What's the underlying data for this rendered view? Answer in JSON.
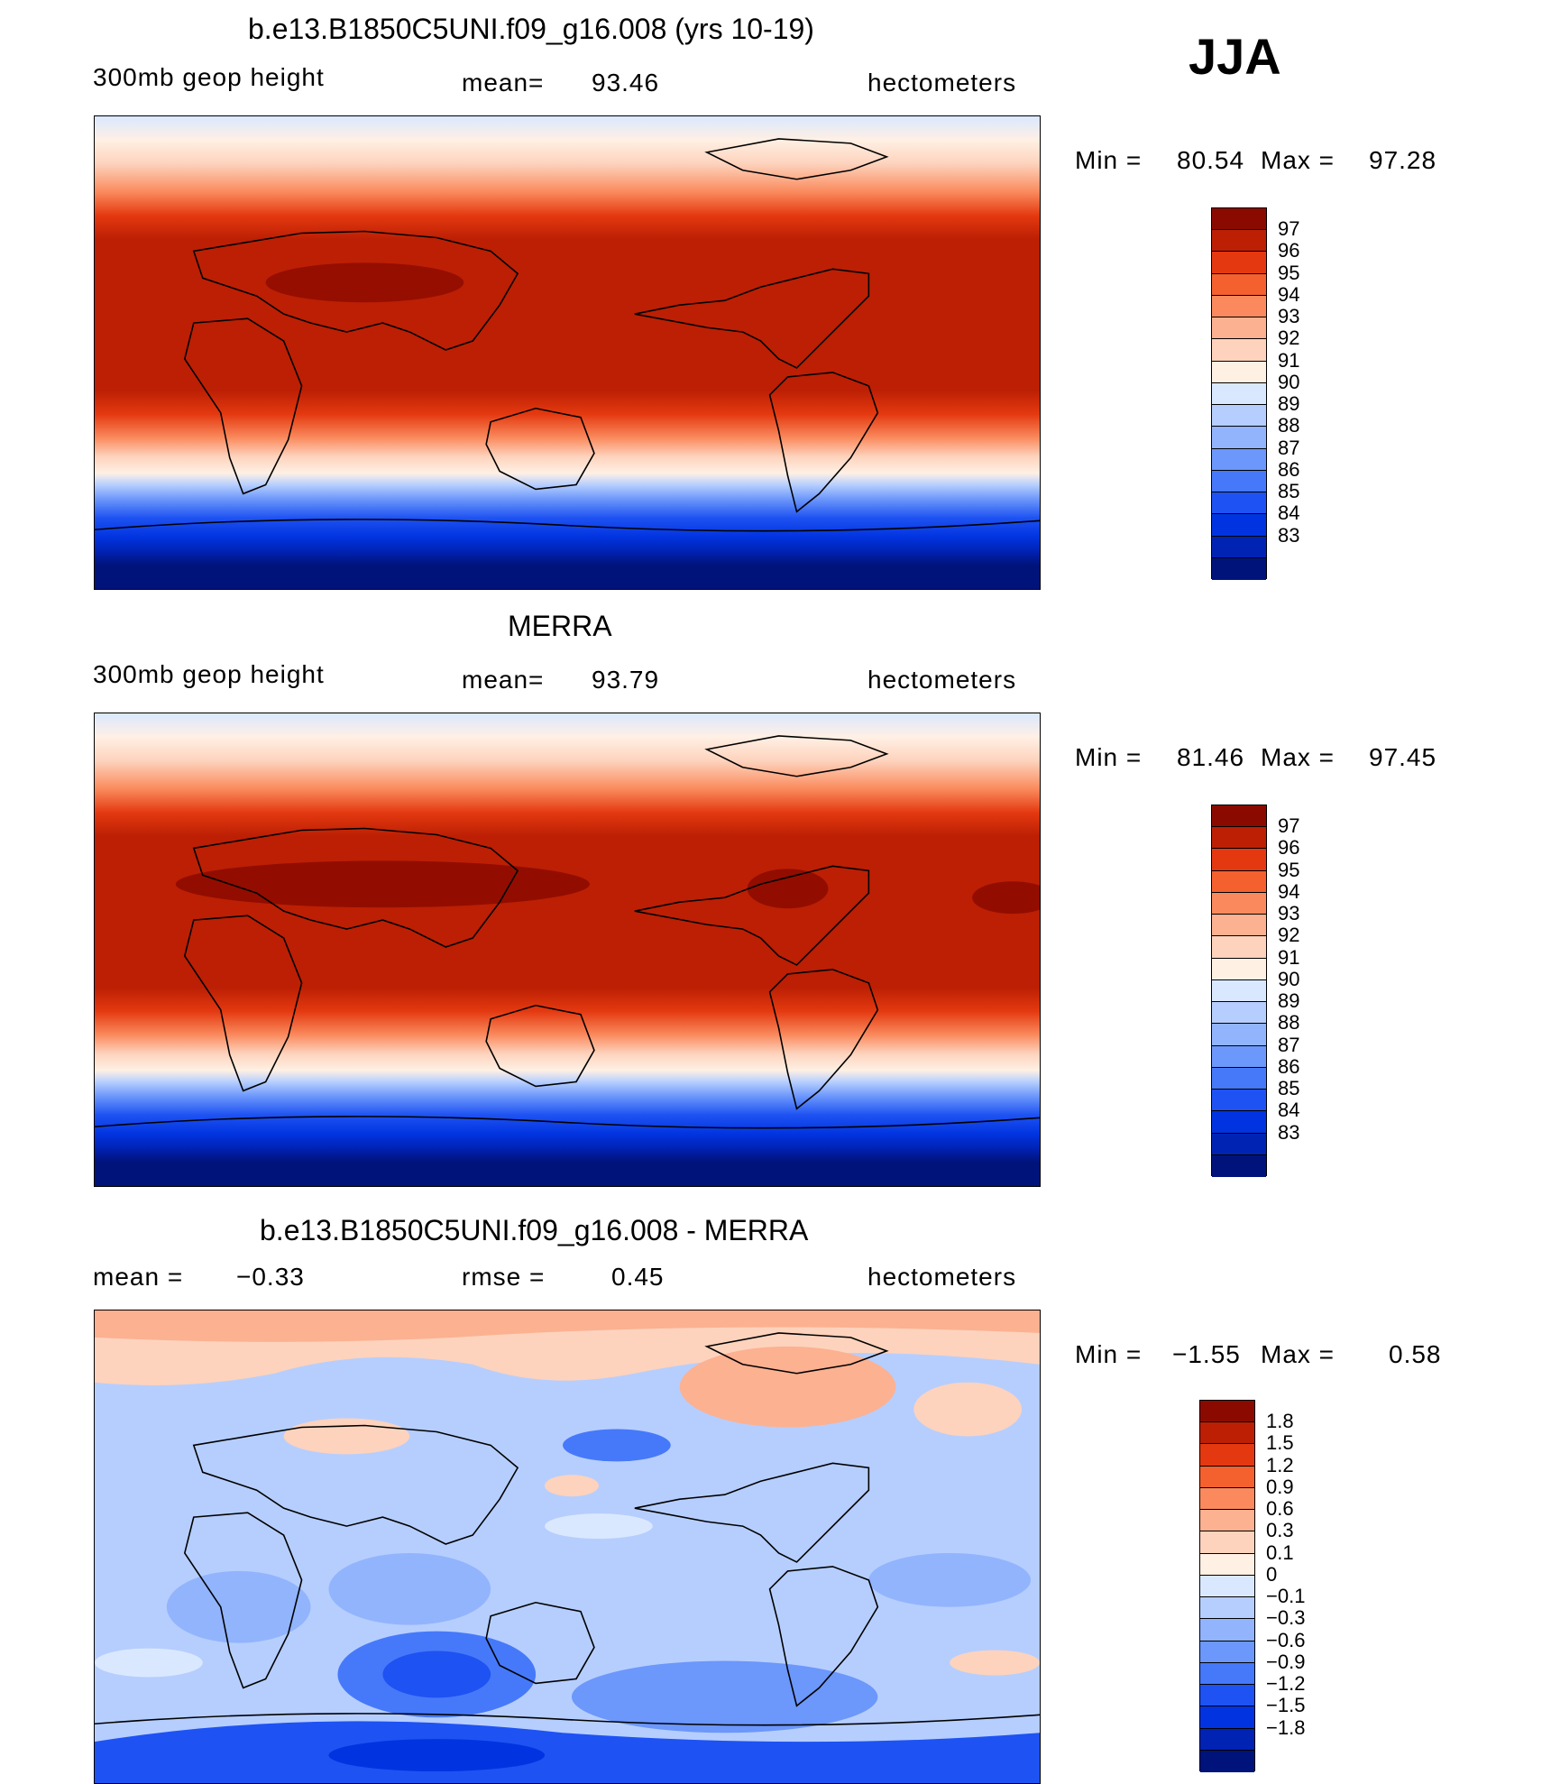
{
  "season": "JJA",
  "colors": {
    "height_palette": [
      "#00137a",
      "#0023b4",
      "#0134e0",
      "#1e52f2",
      "#4679fa",
      "#6c97fb",
      "#91b4fd",
      "#b6cefe",
      "#dae8ff",
      "#fff0e4",
      "#fdd3bd",
      "#fcb191",
      "#fa8a5d",
      "#f4612f",
      "#e43910",
      "#bc1f04",
      "#8b0a00"
    ],
    "diff_palette": [
      "#00137a",
      "#0023b4",
      "#0134e0",
      "#1e52f2",
      "#4679fa",
      "#6c97fb",
      "#91b4fd",
      "#b6cefe",
      "#dae8ff",
      "#fff0e4",
      "#fdd3bd",
      "#fcb191",
      "#fa8a5d",
      "#f4612f",
      "#e43910",
      "#bc1f04",
      "#8b0a00"
    ]
  },
  "panels": [
    {
      "title": "b.e13.B1850C5UNI.f09_g16.008 (yrs 10-19)",
      "field_label": "300mb geop height",
      "stat_label": "mean=",
      "stat_value": "93.46",
      "units": "hectometers",
      "min_label": "Min =",
      "min_value": "80.54",
      "max_label": "Max =",
      "max_value": "97.28",
      "levels": [
        "97",
        "96",
        "95",
        "94",
        "93",
        "92",
        "91",
        "90",
        "89",
        "88",
        "87",
        "86",
        "85",
        "84",
        "83"
      ]
    },
    {
      "title": "MERRA",
      "field_label": "300mb geop height",
      "stat_label": "mean=",
      "stat_value": "93.79",
      "units": "hectometers",
      "min_label": "Min =",
      "min_value": "81.46",
      "max_label": "Max =",
      "max_value": "97.45",
      "levels": [
        "97",
        "96",
        "95",
        "94",
        "93",
        "92",
        "91",
        "90",
        "89",
        "88",
        "87",
        "86",
        "85",
        "84",
        "83"
      ]
    },
    {
      "title": "b.e13.B1850C5UNI.f09_g16.008 - MERRA",
      "field_label": "mean =",
      "field_value": "−0.33",
      "stat_label": "rmse =",
      "stat_value": "0.45",
      "units": "hectometers",
      "min_label": "Min =",
      "min_value": "−1.55",
      "max_label": "Max =",
      "max_value": "0.58",
      "levels": [
        "1.8",
        "1.5",
        "1.2",
        "0.9",
        "0.6",
        "0.3",
        "0.1",
        "0",
        "−0.1",
        "−0.3",
        "−0.6",
        "−0.9",
        "−1.2",
        "−1.5",
        "−1.8"
      ]
    }
  ]
}
